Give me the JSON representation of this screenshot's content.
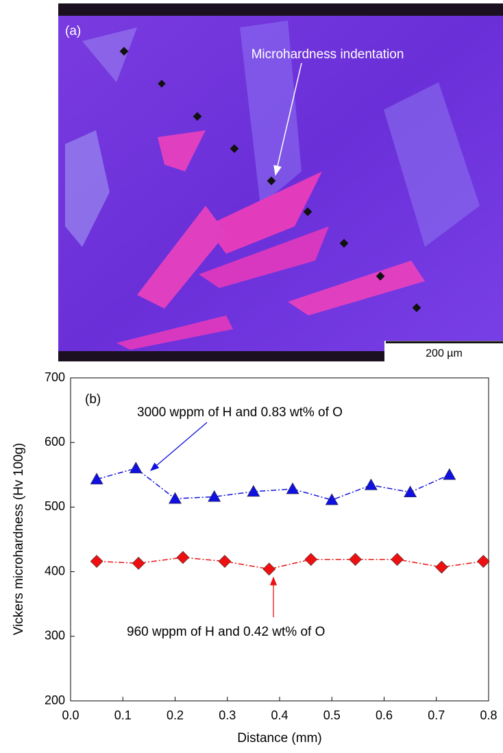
{
  "micrograph": {
    "panel_label": "(a)",
    "annotation": "Microhardness indentation",
    "scale_bar": "200 µm"
  },
  "chart_data": {
    "type": "line",
    "panel_label": "(b)",
    "x_label": "Distance (mm)",
    "y_label": "Vickers microhardness (Hv 100g)",
    "xlim": [
      0,
      0.8
    ],
    "ylim": [
      200,
      700
    ],
    "xticks": [
      {
        "value": 0,
        "label": "0.0"
      },
      0.1,
      0.2,
      0.3,
      0.4,
      0.5,
      0.6,
      0.7,
      0.8
    ],
    "yticks": [
      200,
      300,
      400,
      500,
      600,
      700
    ],
    "grid": false,
    "series": [
      {
        "name": "3000 wppm of H and 0.83 wt% of O",
        "color": "#1010e0",
        "marker": "triangle",
        "x": [
          0.05,
          0.125,
          0.2,
          0.275,
          0.35,
          0.425,
          0.5,
          0.575,
          0.65,
          0.725
        ],
        "values": [
          543,
          560,
          513,
          516,
          524,
          528,
          511,
          534,
          523,
          550
        ]
      },
      {
        "name": "960 wppm of H and 0.42 wt% of O",
        "color": "#ee1010",
        "marker": "diamond",
        "x": [
          0.05,
          0.13,
          0.215,
          0.295,
          0.38,
          0.46,
          0.545,
          0.625,
          0.71,
          0.79
        ],
        "values": [
          416,
          413,
          422,
          416,
          404,
          419,
          419,
          419,
          407,
          416
        ]
      }
    ]
  }
}
